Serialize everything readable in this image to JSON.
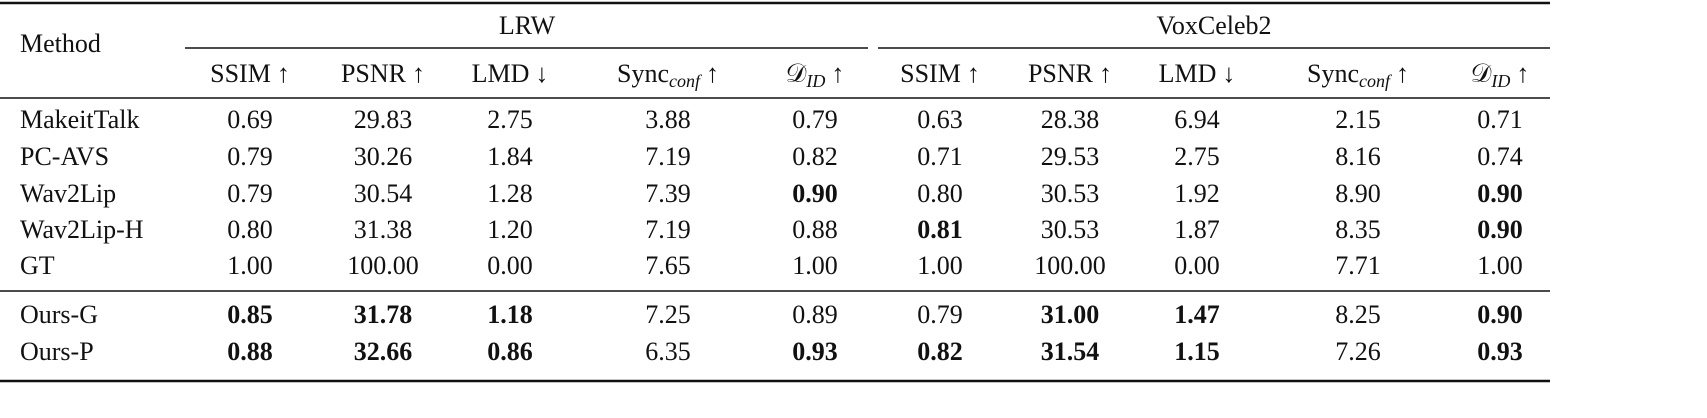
{
  "table": {
    "method_header": "Method",
    "groups": [
      "LRW",
      "VoxCeleb2"
    ],
    "columns": [
      {
        "text": "SSIM",
        "arrow": "↑"
      },
      {
        "text": "PSNR",
        "arrow": "↑"
      },
      {
        "text": "LMD",
        "arrow": "↓"
      },
      {
        "text": "Sync",
        "sub": "conf",
        "arrow": "↑"
      },
      {
        "text": "𝒟",
        "sub": "ID",
        "arrow": "↑"
      },
      {
        "text": "SSIM",
        "arrow": "↑"
      },
      {
        "text": "PSNR",
        "arrow": "↑"
      },
      {
        "text": "LMD",
        "arrow": "↓"
      },
      {
        "text": "Sync",
        "sub": "conf",
        "arrow": "↑"
      },
      {
        "text": "𝒟",
        "sub": "ID",
        "arrow": "↑"
      }
    ],
    "sections": [
      [
        {
          "method": "MakeitTalk",
          "cells": [
            "0.69",
            "29.83",
            "2.75",
            "3.88",
            "0.79",
            "0.63",
            "28.38",
            "6.94",
            "2.15",
            "0.71"
          ]
        },
        {
          "method": "PC-AVS",
          "cells": [
            "0.79",
            "30.26",
            "1.84",
            "7.19",
            "0.82",
            "0.71",
            "29.53",
            "2.75",
            "8.16",
            "0.74"
          ]
        },
        {
          "method": "Wav2Lip",
          "cells": [
            "0.79",
            "30.54",
            "1.28",
            "7.39",
            {
              "text": "0.90",
              "bold": true
            },
            "0.80",
            "30.53",
            "1.92",
            "8.90",
            {
              "text": "0.90",
              "bold": true
            }
          ]
        },
        {
          "method": "Wav2Lip-H",
          "cells": [
            "0.80",
            "31.38",
            "1.20",
            "7.19",
            "0.88",
            {
              "text": "0.81",
              "bold": true
            },
            "30.53",
            "1.87",
            "8.35",
            {
              "text": "0.90",
              "bold": true
            }
          ]
        },
        {
          "method": "GT",
          "cells": [
            "1.00",
            "100.00",
            "0.00",
            "7.65",
            "1.00",
            "1.00",
            "100.00",
            "0.00",
            "7.71",
            "1.00"
          ]
        }
      ],
      [
        {
          "method": "Ours-G",
          "cells": [
            {
              "text": "0.85",
              "bold": true
            },
            {
              "text": "31.78",
              "bold": true
            },
            {
              "text": "1.18",
              "bold": true
            },
            "7.25",
            "0.89",
            "0.79",
            {
              "text": "31.00",
              "bold": true
            },
            {
              "text": "1.47",
              "bold": true
            },
            "8.25",
            {
              "text": "0.90",
              "bold": true
            }
          ]
        },
        {
          "method": "Ours-P",
          "cells": [
            {
              "text": "0.88",
              "bold": true
            },
            {
              "text": "32.66",
              "bold": true
            },
            {
              "text": "0.86",
              "bold": true
            },
            "6.35",
            {
              "text": "0.93",
              "bold": true
            },
            {
              "text": "0.82",
              "bold": true
            },
            {
              "text": "31.54",
              "bold": true
            },
            {
              "text": "1.15",
              "bold": true
            },
            "7.26",
            {
              "text": "0.93",
              "bold": true
            }
          ]
        }
      ]
    ]
  }
}
